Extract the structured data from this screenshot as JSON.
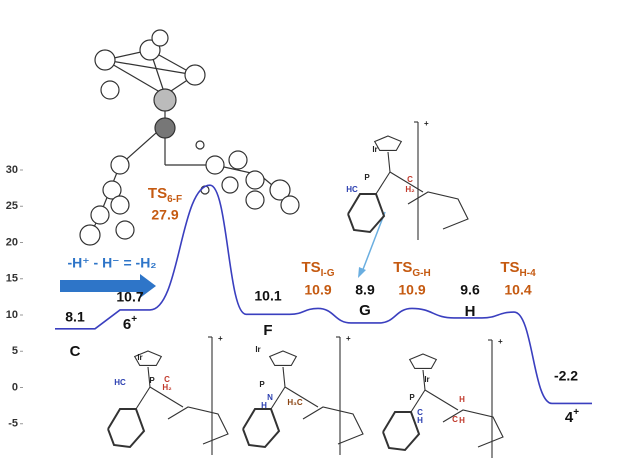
{
  "chart_data": {
    "type": "energy-profile",
    "categories": [
      {
        "text": "C"
      },
      {
        "text": "6",
        "sup": "+"
      },
      {
        "text": "TS",
        "sub": "6-F"
      },
      {
        "text": "F"
      },
      {
        "text": "TS",
        "sub": "I-G"
      },
      {
        "text": "G"
      },
      {
        "text": "TS",
        "sub": "G-H"
      },
      {
        "text": "H"
      },
      {
        "text": "TS",
        "sub": "H-4"
      },
      {
        "text": "4",
        "sup": "+"
      }
    ],
    "values": [
      8.1,
      10.7,
      27.9,
      10.1,
      10.9,
      8.9,
      10.9,
      9.6,
      10.4,
      -2.2
    ],
    "color": "#3a3fbf",
    "ylim": [
      -10,
      30
    ],
    "yticks": [
      -5,
      0,
      5,
      10,
      15,
      20,
      25,
      30
    ],
    "grid": false,
    "annotations": [
      {
        "text": "-H⁺ - H⁻ = -H₂",
        "color": "#2e75c8"
      }
    ],
    "structures": [
      {
        "labels": [
          "Ir",
          "P",
          "HC",
          "C",
          "H₂"
        ],
        "charge": "+"
      },
      {
        "labels": [
          "Ir",
          "P",
          "HC",
          "C",
          "H₂"
        ],
        "charge": "+"
      },
      {
        "labels": [
          "Ir",
          "P",
          "N",
          "H",
          "H₃C"
        ],
        "charge": "+"
      },
      {
        "labels": [
          "Ir",
          "P",
          "C",
          "H",
          "C",
          "H",
          "H"
        ],
        "charge": "+"
      }
    ]
  }
}
